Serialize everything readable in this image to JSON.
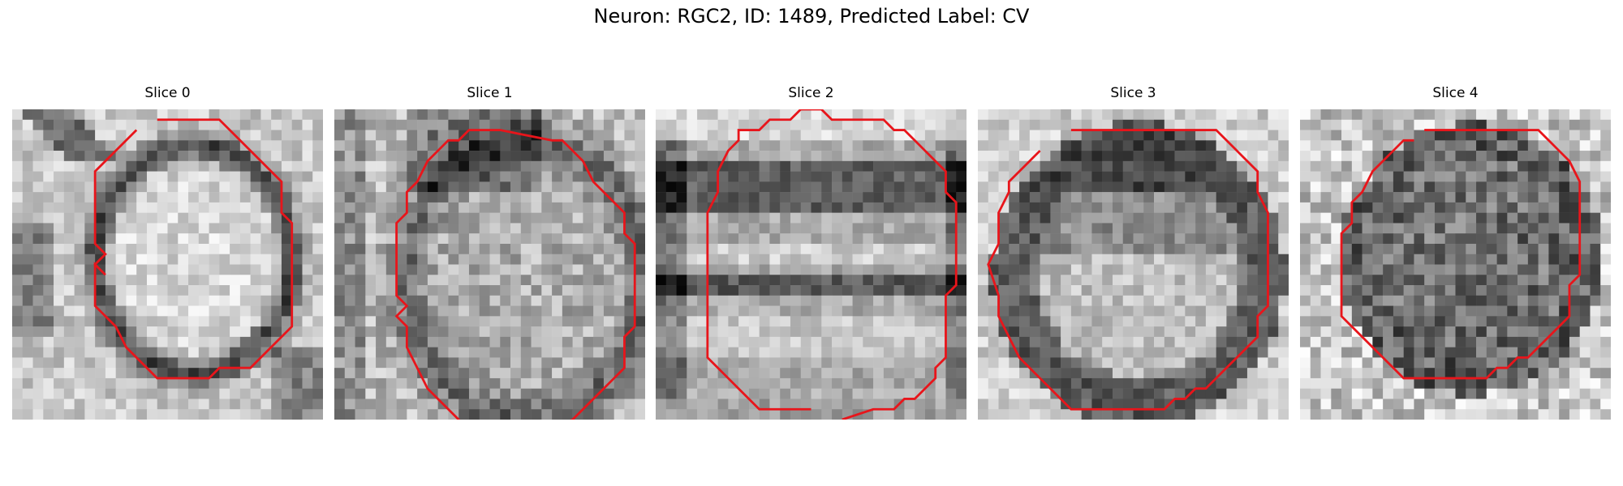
{
  "figure": {
    "title": "Neuron: RGC2, ID: 1489, Predicted Label: CV"
  },
  "panels": [
    {
      "title": "Slice 0"
    },
    {
      "title": "Slice 1"
    },
    {
      "title": "Slice 2"
    },
    {
      "title": "Slice 3"
    },
    {
      "title": "Slice 4"
    }
  ],
  "colors": {
    "contour": "#e8151b"
  }
}
